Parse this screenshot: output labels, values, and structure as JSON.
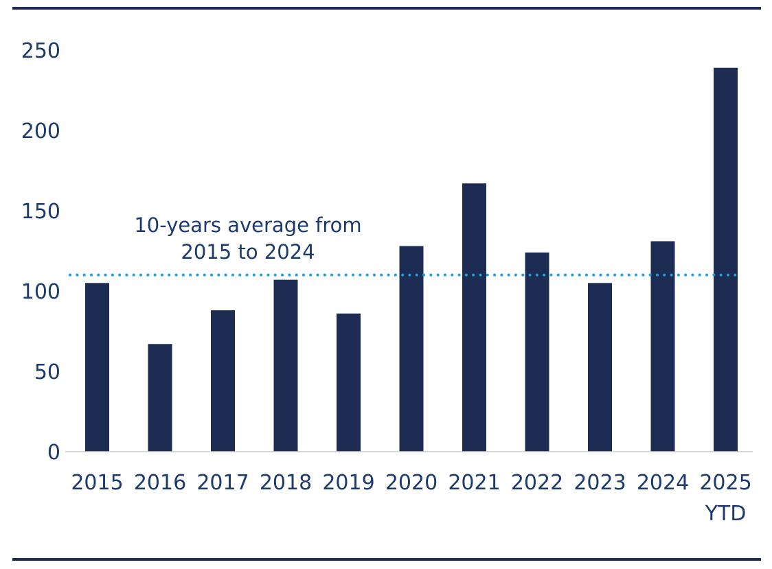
{
  "colors": {
    "bar": "#1c2c52",
    "average_line": "#1ea0d6",
    "text": "#1c3a6e",
    "rule": "#1c2c52",
    "axis": "#c8c8c8"
  },
  "chart_data": {
    "type": "bar",
    "title": "",
    "xlabel": "",
    "ylabel": "",
    "categories": [
      [
        "2015"
      ],
      [
        "2016"
      ],
      [
        "2017"
      ],
      [
        "2018"
      ],
      [
        "2019"
      ],
      [
        "2020"
      ],
      [
        "2021"
      ],
      [
        "2022"
      ],
      [
        "2023"
      ],
      [
        "2024"
      ],
      [
        "2025",
        "YTD"
      ]
    ],
    "values": [
      105,
      67,
      88,
      107,
      86,
      128,
      167,
      124,
      105,
      131,
      239
    ],
    "ylim": [
      0,
      250
    ],
    "yticks": [
      0,
      50,
      100,
      150,
      200,
      250
    ],
    "grid": false,
    "reference_line": {
      "value": 110,
      "style": "dotted",
      "label": [
        "10-years average from",
        "2015 to 2024"
      ]
    }
  }
}
